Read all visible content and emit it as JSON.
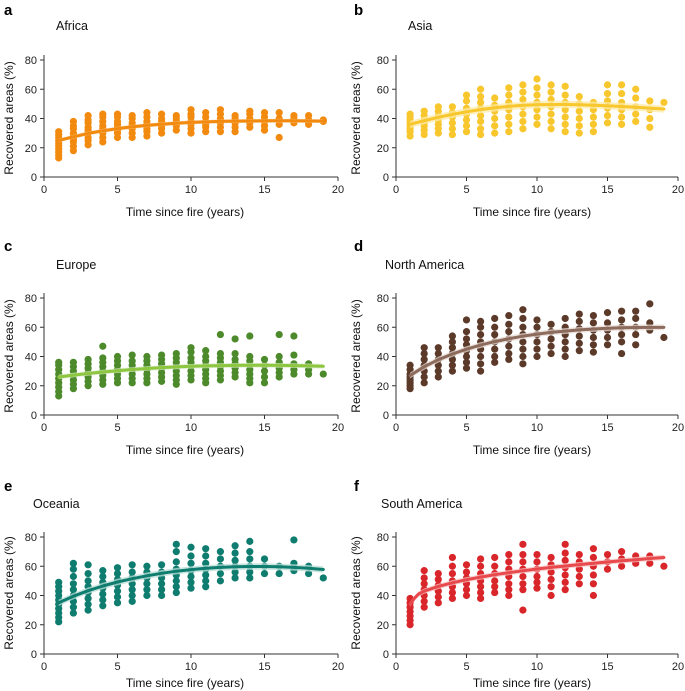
{
  "chart_data": [
    {
      "type": "scatter",
      "letter": "a",
      "title": "Africa",
      "xlabel": "Time since fire (years)",
      "ylabel": "Recovered areas (%)",
      "xlim": [
        0,
        20
      ],
      "ylim": [
        0,
        80
      ],
      "xticks": [
        0,
        5,
        10,
        15,
        20
      ],
      "yticks": [
        0,
        20,
        40,
        60,
        80
      ],
      "color": "#F28A0F",
      "band_color": "#F9C98F",
      "points_per_year": {
        "1": [
          13,
          15,
          17,
          19,
          21,
          23,
          25,
          27,
          29,
          31
        ],
        "2": [
          18,
          21,
          24,
          26,
          28,
          30,
          33,
          35,
          38
        ],
        "3": [
          22,
          25,
          27,
          30,
          32,
          34,
          37,
          39,
          42
        ],
        "4": [
          24,
          27,
          30,
          33,
          35,
          38,
          41,
          43
        ],
        "5": [
          27,
          30,
          32,
          34,
          36,
          38,
          41,
          43
        ],
        "6": [
          27,
          30,
          33,
          35,
          37,
          40,
          42
        ],
        "7": [
          28,
          31,
          33,
          36,
          38,
          41,
          44
        ],
        "8": [
          30,
          33,
          35,
          38,
          40,
          43
        ],
        "9": [
          32,
          35,
          38,
          40,
          42
        ],
        "10": [
          30,
          33,
          36,
          38,
          41,
          43,
          46
        ],
        "11": [
          31,
          34,
          36,
          38,
          41,
          44
        ],
        "12": [
          31,
          34,
          37,
          40,
          43,
          46
        ],
        "13": [
          31,
          34,
          37,
          40,
          42
        ],
        "14": [
          34,
          37,
          40,
          43,
          45
        ],
        "15": [
          32,
          35,
          38,
          41,
          44
        ],
        "16": [
          27,
          36,
          40,
          44
        ],
        "17": [
          37,
          40,
          42
        ],
        "18": [
          36,
          39,
          42
        ],
        "19": [
          38,
          39
        ]
      },
      "fit_x": [
        1,
        2,
        3,
        4,
        5,
        6,
        7,
        8,
        9,
        10,
        11,
        12,
        13,
        14,
        15,
        16,
        17,
        18,
        19
      ],
      "fit_y": [
        25,
        27.5,
        29.8,
        31.6,
        33.1,
        34.3,
        35.3,
        36.1,
        36.8,
        37.3,
        37.7,
        38.0,
        38.2,
        38.3,
        38.4,
        38.4,
        38.4,
        38.3,
        38.2
      ],
      "band_halfwidth": 1.3
    },
    {
      "type": "scatter",
      "letter": "b",
      "title": "Asia",
      "xlabel": "Time since fire (years)",
      "ylabel": "Recovered areas (%)",
      "xlim": [
        0,
        20
      ],
      "ylim": [
        0,
        80
      ],
      "xticks": [
        0,
        5,
        10,
        15,
        20
      ],
      "yticks": [
        0,
        20,
        40,
        60,
        80
      ],
      "color": "#F8C62D",
      "band_color": "#FCEBA8",
      "points_per_year": {
        "1": [
          28,
          31,
          33,
          35,
          37,
          39,
          41,
          43
        ],
        "2": [
          29,
          32,
          35,
          37,
          39,
          42,
          45
        ],
        "3": [
          30,
          33,
          36,
          39,
          42,
          45,
          48
        ],
        "4": [
          29,
          33,
          37,
          41,
          44,
          48
        ],
        "5": [
          31,
          35,
          39,
          43,
          47,
          52,
          56
        ],
        "6": [
          29,
          33,
          38,
          42,
          47,
          51,
          55,
          60
        ],
        "7": [
          30,
          35,
          40,
          45,
          49,
          54
        ],
        "8": [
          31,
          36,
          41,
          46,
          51,
          56,
          61
        ],
        "9": [
          33,
          38,
          43,
          48,
          53,
          58,
          63
        ],
        "10": [
          36,
          41,
          46,
          51,
          56,
          61,
          67
        ],
        "11": [
          33,
          38,
          43,
          48,
          53,
          58,
          63
        ],
        "12": [
          31,
          36,
          41,
          46,
          51,
          56,
          62
        ],
        "13": [
          30,
          35,
          40,
          45,
          50,
          55
        ],
        "14": [
          31,
          36,
          41,
          46,
          51
        ],
        "15": [
          37,
          42,
          47,
          52,
          57,
          63
        ],
        "16": [
          36,
          41,
          46,
          51,
          57,
          63
        ],
        "17": [
          38,
          43,
          48,
          54,
          60
        ],
        "18": [
          34,
          40,
          46,
          52
        ],
        "19": [
          51
        ]
      },
      "fit_x": [
        1,
        2,
        3,
        4,
        5,
        6,
        7,
        8,
        9,
        10,
        11,
        12,
        13,
        14,
        15,
        16,
        17,
        18,
        19
      ],
      "fit_y": [
        36,
        38.5,
        40.8,
        42.8,
        44.6,
        46.1,
        47.3,
        48.3,
        49.0,
        49.4,
        49.6,
        49.6,
        49.4,
        49.1,
        48.7,
        48.2,
        47.7,
        47.1,
        46.5
      ],
      "band_halfwidth": 2.5
    },
    {
      "type": "scatter",
      "letter": "c",
      "title": "Europe",
      "xlabel": "Time since fire (years)",
      "ylabel": "Recovered areas (%)",
      "xlim": [
        0,
        20
      ],
      "ylim": [
        0,
        80
      ],
      "xticks": [
        0,
        5,
        10,
        15,
        20
      ],
      "yticks": [
        0,
        20,
        40,
        60,
        80
      ],
      "color": "#4C8A2B",
      "line_color": "#8DC63F",
      "band_color": "#D5E8C2",
      "points_per_year": {
        "1": [
          13,
          16,
          19,
          22,
          25,
          28,
          31,
          34,
          36
        ],
        "2": [
          18,
          21,
          24,
          27,
          30,
          33,
          36
        ],
        "3": [
          20,
          23,
          26,
          29,
          32,
          35,
          38
        ],
        "4": [
          21,
          24,
          27,
          30,
          33,
          36,
          39,
          47
        ],
        "5": [
          22,
          25,
          28,
          31,
          34,
          37,
          40
        ],
        "6": [
          22,
          25,
          28,
          31,
          34,
          37,
          41
        ],
        "7": [
          22,
          25,
          28,
          31,
          34,
          37,
          40
        ],
        "8": [
          23,
          26,
          29,
          32,
          35,
          38,
          41
        ],
        "9": [
          21,
          24,
          27,
          30,
          33,
          36,
          39,
          42
        ],
        "10": [
          24,
          27,
          30,
          33,
          36,
          39,
          43,
          46
        ],
        "11": [
          22,
          25,
          28,
          31,
          34,
          37,
          40,
          44
        ],
        "12": [
          24,
          27,
          30,
          33,
          36,
          39,
          42,
          55
        ],
        "13": [
          26,
          29,
          32,
          35,
          38,
          42,
          52
        ],
        "14": [
          22,
          25,
          28,
          31,
          34,
          37,
          40,
          54
        ],
        "15": [
          22,
          26,
          30,
          34,
          38
        ],
        "16": [
          26,
          29,
          32,
          36,
          40,
          55
        ],
        "17": [
          28,
          31,
          35,
          41,
          54
        ],
        "18": [
          28,
          31,
          35
        ],
        "19": [
          28
        ]
      },
      "fit_x": [
        1,
        2,
        3,
        4,
        5,
        6,
        7,
        8,
        9,
        10,
        11,
        12,
        13,
        14,
        15,
        16,
        17,
        18,
        19
      ],
      "fit_y": [
        26,
        27.3,
        28.4,
        29.4,
        30.3,
        31.1,
        31.8,
        32.4,
        32.9,
        33.3,
        33.6,
        33.8,
        33.9,
        34.0,
        34.0,
        33.9,
        33.8,
        33.6,
        33.3
      ],
      "band_halfwidth": 1.6
    },
    {
      "type": "scatter",
      "letter": "d",
      "title": "North America",
      "xlabel": "Time since fire (years)",
      "ylabel": "Recovered areas (%)",
      "xlim": [
        0,
        20
      ],
      "ylim": [
        0,
        80
      ],
      "xticks": [
        0,
        5,
        10,
        15,
        20
      ],
      "yticks": [
        0,
        20,
        40,
        60,
        80
      ],
      "color": "#5C3A2A",
      "line_color": "#8C6A5C",
      "band_color": "#E6D9D3",
      "points_per_year": {
        "1": [
          18,
          20,
          22,
          24,
          26,
          28,
          31,
          34
        ],
        "2": [
          22,
          26,
          30,
          34,
          38,
          42,
          46
        ],
        "3": [
          26,
          30,
          34,
          38,
          42,
          46
        ],
        "4": [
          30,
          34,
          38,
          42,
          46,
          50,
          54
        ],
        "5": [
          32,
          36,
          40,
          44,
          48,
          52,
          57,
          65
        ],
        "6": [
          30,
          35,
          40,
          45,
          50,
          55,
          60,
          64
        ],
        "7": [
          36,
          40,
          45,
          50,
          55,
          60,
          66
        ],
        "8": [
          38,
          42,
          47,
          52,
          57,
          62,
          68
        ],
        "9": [
          35,
          40,
          45,
          50,
          55,
          60,
          66,
          72
        ],
        "10": [
          40,
          45,
          50,
          55,
          60,
          65
        ],
        "11": [
          42,
          47,
          52,
          57,
          62
        ],
        "12": [
          40,
          45,
          50,
          55,
          60,
          66
        ],
        "13": [
          44,
          49,
          54,
          59,
          64,
          69
        ],
        "14": [
          43,
          48,
          53,
          58,
          63,
          68
        ],
        "15": [
          48,
          53,
          58,
          63,
          70
        ],
        "16": [
          42,
          50,
          55,
          60,
          65,
          71
        ],
        "17": [
          48,
          55,
          60,
          66,
          71
        ],
        "18": [
          58,
          63,
          76
        ],
        "19": [
          53
        ]
      },
      "fit_x": [
        1,
        2,
        3,
        4,
        5,
        6,
        7,
        8,
        9,
        10,
        11,
        12,
        13,
        14,
        15,
        16,
        17,
        18,
        19
      ],
      "fit_y": [
        27,
        33,
        37.8,
        41.7,
        45.0,
        47.8,
        50.2,
        52.2,
        53.9,
        55.3,
        56.5,
        57.4,
        58.2,
        58.8,
        59.3,
        59.6,
        59.8,
        59.9,
        59.9
      ],
      "band_halfwidth": 2.0
    },
    {
      "type": "scatter",
      "letter": "e",
      "title": "Oceania",
      "xlabel": "Time since fire (years)",
      "ylabel": "Recovered areas (%)",
      "xlim": [
        0,
        20
      ],
      "ylim": [
        0,
        80
      ],
      "xticks": [
        0,
        5,
        10,
        15,
        20
      ],
      "yticks": [
        0,
        20,
        40,
        60,
        80
      ],
      "color": "#0E7C6E",
      "band_color": "#B9DDD7",
      "points_per_year": {
        "1": [
          22,
          25,
          28,
          31,
          34,
          37,
          40,
          43,
          46,
          49
        ],
        "2": [
          28,
          32,
          36,
          40,
          44,
          48,
          53,
          58,
          62
        ],
        "3": [
          30,
          34,
          38,
          42,
          46,
          50,
          55,
          61
        ],
        "4": [
          33,
          37,
          41,
          45,
          49,
          53,
          57
        ],
        "5": [
          35,
          39,
          43,
          47,
          51,
          55,
          59
        ],
        "6": [
          36,
          40,
          44,
          48,
          52,
          56,
          61
        ],
        "7": [
          40,
          44,
          48,
          52,
          56,
          60
        ],
        "8": [
          40,
          44,
          48,
          52,
          56,
          61
        ],
        "9": [
          42,
          46,
          50,
          54,
          58,
          63,
          70,
          75
        ],
        "10": [
          45,
          49,
          53,
          57,
          62,
          67,
          73
        ],
        "11": [
          46,
          50,
          54,
          58,
          62,
          67,
          72
        ],
        "12": [
          50,
          55,
          60,
          65,
          70
        ],
        "13": [
          52,
          56,
          60,
          64,
          69,
          74
        ],
        "14": [
          52,
          56,
          60,
          65,
          70,
          77
        ],
        "15": [
          55,
          60,
          65
        ],
        "16": [
          55,
          60
        ],
        "17": [
          57,
          62,
          78
        ],
        "18": [
          55,
          60
        ],
        "19": [
          52
        ]
      },
      "fit_x": [
        1,
        2,
        3,
        4,
        5,
        6,
        7,
        8,
        9,
        10,
        11,
        12,
        13,
        14,
        15,
        16,
        17,
        18,
        19
      ],
      "fit_y": [
        35,
        39.5,
        43.3,
        46.5,
        49.2,
        51.5,
        53.5,
        55.2,
        56.6,
        57.7,
        58.6,
        59.2,
        59.6,
        59.8,
        59.8,
        59.6,
        59.2,
        58.6,
        57.8
      ],
      "band_halfwidth": 2.2
    },
    {
      "type": "scatter",
      "letter": "f",
      "title": "South America",
      "xlabel": "Time since fire (years)",
      "ylabel": "Recovered areas (%)",
      "xlim": [
        0,
        20
      ],
      "ylim": [
        0,
        80
      ],
      "xticks": [
        0,
        5,
        10,
        15,
        20
      ],
      "yticks": [
        0,
        20,
        40,
        60,
        80
      ],
      "color": "#D9262A",
      "line_color": "#E8494C",
      "band_color": "#F6C0C1",
      "points_per_year": {
        "1": [
          20,
          23,
          26,
          29,
          32,
          35,
          38
        ],
        "2": [
          32,
          36,
          40,
          44,
          48,
          52,
          57
        ],
        "3": [
          35,
          39,
          43,
          47,
          51,
          55
        ],
        "4": [
          38,
          42,
          46,
          50,
          55,
          60,
          66
        ],
        "5": [
          40,
          44,
          48,
          52,
          56,
          61
        ],
        "6": [
          38,
          42,
          46,
          50,
          55,
          60,
          65
        ],
        "7": [
          42,
          46,
          50,
          55,
          60,
          66
        ],
        "8": [
          40,
          44,
          48,
          53,
          58,
          63,
          68
        ],
        "9": [
          30,
          44,
          48,
          53,
          58,
          63,
          68,
          75
        ],
        "10": [
          45,
          49,
          53,
          58,
          63,
          68
        ],
        "11": [
          40,
          46,
          51,
          56,
          61,
          66
        ],
        "12": [
          44,
          49,
          54,
          59,
          64,
          69,
          75
        ],
        "13": [
          48,
          53,
          58,
          63,
          68
        ],
        "14": [
          40,
          48,
          54,
          60,
          66,
          72
        ],
        "15": [
          58,
          63,
          68
        ],
        "16": [
          60,
          65,
          70
        ],
        "17": [
          62,
          67
        ],
        "18": [
          62,
          67
        ],
        "19": [
          60
        ]
      },
      "fit_x": [
        1,
        1.3,
        1.6,
        2,
        3,
        4,
        5,
        6,
        7,
        8,
        9,
        10,
        11,
        12,
        13,
        14,
        15,
        16,
        17,
        18,
        19
      ],
      "fit_y": [
        34,
        38,
        41,
        43,
        46.2,
        48.7,
        50.8,
        52.6,
        54.2,
        55.6,
        56.9,
        58.1,
        59.2,
        60.2,
        61.1,
        62.0,
        62.9,
        63.7,
        64.5,
        65.3,
        66.0
      ],
      "band_halfwidth": 1.8
    }
  ]
}
